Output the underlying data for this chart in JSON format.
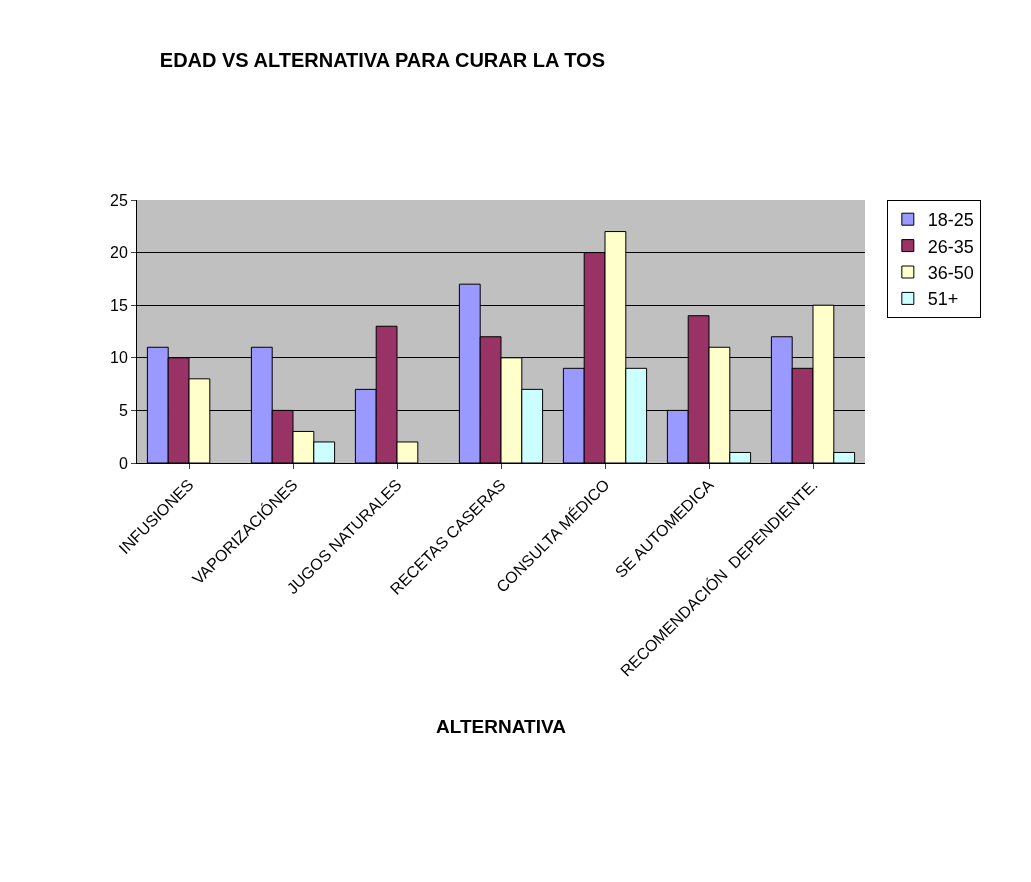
{
  "chart_data": {
    "type": "bar",
    "title": "EDAD VS ALTERNATIVA PARA CURAR LA TOS",
    "xlabel": "ALTERNATIVA",
    "categories": [
      "INFUSIONES",
      "VAPORIZACIÓNES",
      "JUGOS NATURALES",
      "RECETAS CASERAS",
      "CONSULTA MÉDICO",
      "SE AUTOMEDICA",
      "RECOMENDACIÓN  DEPENDIENTE."
    ],
    "series": [
      {
        "name": "18-25",
        "color": "#9999ff",
        "values": [
          11,
          11,
          7,
          17,
          9,
          5,
          12
        ]
      },
      {
        "name": "26-35",
        "color": "#993366",
        "values": [
          10,
          5,
          13,
          12,
          20,
          14,
          9
        ]
      },
      {
        "name": "36-50",
        "color": "#ffffcc",
        "values": [
          8,
          3,
          2,
          10,
          22,
          11,
          15
        ]
      },
      {
        "name": "51+",
        "color": "#ccffff",
        "values": [
          null,
          2,
          null,
          7,
          9,
          1,
          1
        ]
      }
    ],
    "ylim": [
      0,
      25
    ],
    "yticks": [
      0,
      5,
      10,
      15,
      20,
      25
    ],
    "grid": "y",
    "legend": "right"
  }
}
